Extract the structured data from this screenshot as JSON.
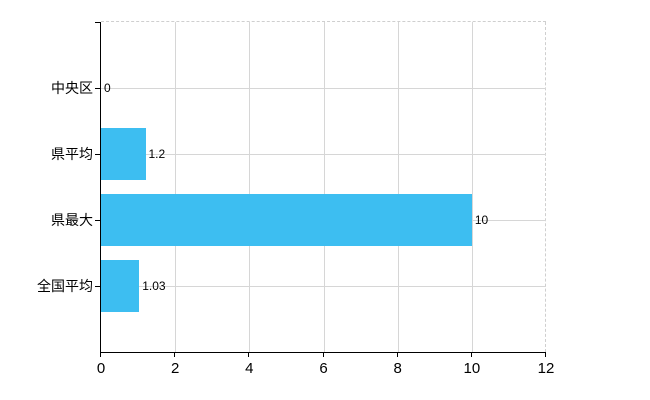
{
  "chart_data": {
    "type": "bar",
    "orientation": "horizontal",
    "title": "",
    "xlabel": "",
    "ylabel": "",
    "categories": [
      "中央区",
      "県平均",
      "県最大",
      "全国平均"
    ],
    "values": [
      0,
      1.2,
      10,
      1.03
    ],
    "value_labels": [
      "0",
      "1.2",
      "10",
      "1.03"
    ],
    "xlim": [
      0,
      12
    ],
    "x_ticks": [
      0,
      2,
      4,
      6,
      8,
      10,
      12
    ],
    "grid": true,
    "legend": false,
    "colors": {
      "bar": "#3dbef1",
      "grid": "#d6d6d6",
      "boundary": "#cfcfcf",
      "axis": "#000000",
      "text": "#000000"
    }
  }
}
